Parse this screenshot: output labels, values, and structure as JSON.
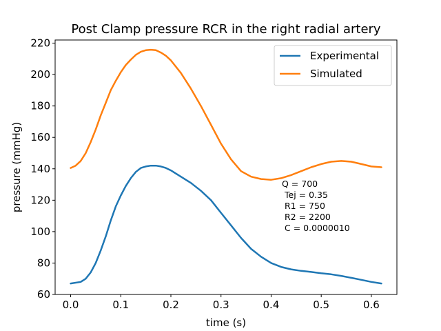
{
  "chart_data": {
    "type": "line",
    "title": "Post Clamp pressure RCR in the right radial artery",
    "xlabel": "time (s)",
    "ylabel": "pressure (mmHg)",
    "xlim": [
      -0.031,
      0.651
    ],
    "ylim": [
      60,
      222
    ],
    "xticks": [
      0.0,
      0.1,
      0.2,
      0.3,
      0.4,
      0.5,
      0.6
    ],
    "xtick_labels": [
      "0.0",
      "0.1",
      "0.2",
      "0.3",
      "0.4",
      "0.5",
      "0.6"
    ],
    "yticks": [
      60,
      80,
      100,
      120,
      140,
      160,
      180,
      200,
      220
    ],
    "ytick_labels": [
      "60",
      "80",
      "100",
      "120",
      "140",
      "160",
      "180",
      "200",
      "220"
    ],
    "grid": false,
    "legend": "top-right",
    "series": [
      {
        "name": "Experimental",
        "color": "#1f77b4",
        "x": [
          0.0,
          0.02,
          0.03,
          0.04,
          0.05,
          0.06,
          0.07,
          0.08,
          0.09,
          0.1,
          0.11,
          0.12,
          0.13,
          0.14,
          0.15,
          0.16,
          0.17,
          0.18,
          0.19,
          0.2,
          0.22,
          0.24,
          0.26,
          0.28,
          0.3,
          0.32,
          0.34,
          0.36,
          0.38,
          0.4,
          0.42,
          0.44,
          0.46,
          0.48,
          0.5,
          0.52,
          0.54,
          0.56,
          0.58,
          0.6,
          0.62
        ],
        "y": [
          67,
          68,
          70,
          74,
          80,
          88,
          97,
          107,
          116,
          123,
          129,
          134,
          138,
          140.5,
          141.5,
          142,
          142,
          141.5,
          140.5,
          139,
          135,
          131,
          126,
          120,
          112,
          104,
          96,
          89,
          84,
          80,
          77.5,
          76,
          75,
          74.3,
          73.5,
          72.8,
          71.8,
          70.6,
          69.3,
          68,
          67
        ]
      },
      {
        "name": "Simulated",
        "color": "#ff7f0e",
        "x": [
          0.0,
          0.01,
          0.02,
          0.03,
          0.04,
          0.05,
          0.06,
          0.07,
          0.08,
          0.09,
          0.1,
          0.11,
          0.12,
          0.13,
          0.14,
          0.15,
          0.16,
          0.17,
          0.18,
          0.19,
          0.2,
          0.22,
          0.24,
          0.26,
          0.28,
          0.3,
          0.32,
          0.34,
          0.36,
          0.38,
          0.4,
          0.42,
          0.44,
          0.46,
          0.48,
          0.5,
          0.52,
          0.54,
          0.56,
          0.58,
          0.6,
          0.62
        ],
        "y": [
          140.5,
          142,
          145,
          150,
          157,
          165,
          174,
          182,
          190,
          196,
          201.5,
          206,
          209.5,
          212.5,
          214.5,
          215.5,
          215.8,
          215.5,
          214,
          212,
          209,
          201,
          191,
          180,
          168,
          156,
          146,
          138.5,
          135,
          133.5,
          133,
          134,
          136,
          138.5,
          141,
          143,
          144.5,
          145,
          144.5,
          143,
          141.5,
          141
        ]
      }
    ],
    "annotation": [
      "Q = 700",
      "Tej = 0.35",
      "R1 = 750",
      "R2 = 2200",
      "C = 0.0000010"
    ]
  }
}
